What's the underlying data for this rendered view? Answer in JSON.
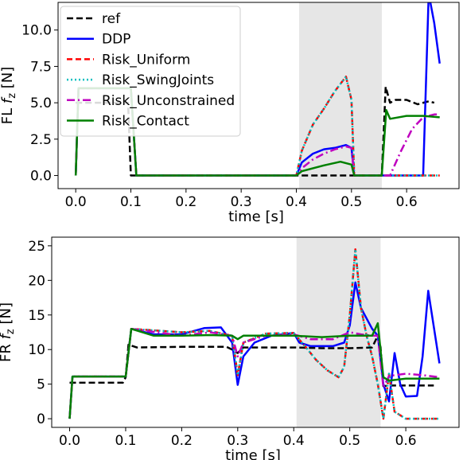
{
  "chart_data": [
    {
      "type": "line",
      "xlabel": "time [s]",
      "ylabel_main": "FL ",
      "ylabel_var": "f",
      "ylabel_sub": "z",
      "ylabel_unit": " [N]",
      "xlim": [
        -0.032,
        0.695
      ],
      "ylim": [
        -0.9,
        11.9
      ],
      "xticks": [
        0.0,
        0.1,
        0.2,
        0.3,
        0.4,
        0.5,
        0.6
      ],
      "xtick_labels": [
        "0.0",
        "0.1",
        "0.2",
        "0.3",
        "0.4",
        "0.5",
        "0.6"
      ],
      "yticks": [
        0.0,
        2.5,
        5.0,
        7.5,
        10.0
      ],
      "ytick_labels": [
        "0.0",
        "2.5",
        "5.0",
        "7.5",
        "10.0"
      ],
      "shaded_region": [
        0.405,
        0.555
      ],
      "legend": "top-left",
      "series": [
        {
          "name": "ref",
          "color": "#000000",
          "dash": "8,4",
          "x": [
            0.0,
            0.001,
            0.095,
            0.1,
            0.405,
            0.555,
            0.562,
            0.57,
            0.58,
            0.6,
            0.62,
            0.64,
            0.65
          ],
          "y": [
            5.0,
            5.0,
            5.0,
            0.0,
            0.0,
            0.0,
            6.1,
            5.0,
            5.2,
            5.2,
            4.9,
            5.1,
            5.0
          ]
        },
        {
          "name": "DDP",
          "color": "#0000ff",
          "dash": "",
          "x": [
            0.0,
            0.005,
            0.1,
            0.11,
            0.4,
            0.41,
            0.43,
            0.45,
            0.47,
            0.49,
            0.5,
            0.505,
            0.555,
            0.63,
            0.64,
            0.65,
            0.66
          ],
          "y": [
            0.0,
            6.0,
            6.0,
            0.0,
            0.0,
            0.9,
            1.5,
            1.8,
            1.9,
            2.1,
            1.9,
            0.0,
            0.0,
            0.0,
            12.5,
            10.5,
            7.7
          ]
        },
        {
          "name": "Risk_Uniform",
          "color": "#ff0000",
          "dash": "7,4",
          "x": [
            0.0,
            0.005,
            0.1,
            0.11,
            0.4,
            0.41,
            0.43,
            0.45,
            0.47,
            0.49,
            0.5,
            0.505,
            0.66
          ],
          "y": [
            0.0,
            6.0,
            6.0,
            0.0,
            0.0,
            1.7,
            3.5,
            4.6,
            5.8,
            6.8,
            5.2,
            0.0,
            0.0
          ]
        },
        {
          "name": "Risk_SwingJoints",
          "color": "#00bfbf",
          "dash": "2,3",
          "x": [
            0.0,
            0.005,
            0.1,
            0.11,
            0.4,
            0.41,
            0.43,
            0.45,
            0.47,
            0.49,
            0.5,
            0.505,
            0.66
          ],
          "y": [
            0.0,
            6.0,
            6.0,
            0.0,
            0.0,
            1.7,
            3.5,
            4.6,
            5.8,
            6.8,
            5.2,
            0.0,
            0.0
          ]
        },
        {
          "name": "Risk_Unconstrained",
          "color": "#bf00bf",
          "dash": "10,4,2,4",
          "x": [
            0.0,
            0.005,
            0.1,
            0.11,
            0.4,
            0.41,
            0.43,
            0.45,
            0.47,
            0.49,
            0.5,
            0.505,
            0.57,
            0.59,
            0.61,
            0.63,
            0.65,
            0.66
          ],
          "y": [
            0.0,
            6.0,
            6.0,
            0.0,
            0.0,
            0.5,
            1.1,
            1.5,
            1.8,
            2.0,
            1.9,
            0.0,
            0.0,
            1.7,
            3.2,
            4.0,
            4.2,
            4.2
          ]
        },
        {
          "name": "Risk_Contact",
          "color": "#008000",
          "dash": "",
          "x": [
            0.0,
            0.005,
            0.1,
            0.11,
            0.4,
            0.41,
            0.45,
            0.48,
            0.5,
            0.505,
            0.555,
            0.563,
            0.57,
            0.6,
            0.63,
            0.66
          ],
          "y": [
            0.0,
            6.0,
            6.0,
            0.0,
            0.0,
            0.3,
            0.7,
            0.95,
            0.75,
            0.0,
            0.0,
            4.5,
            3.9,
            4.1,
            4.1,
            4.0
          ]
        }
      ]
    },
    {
      "type": "line",
      "xlabel": "time [s]",
      "ylabel_main": "FR ",
      "ylabel_var": "f",
      "ylabel_sub": "z",
      "ylabel_unit": " [N]",
      "xlim": [
        -0.032,
        0.695
      ],
      "ylim": [
        -1.25,
        26.25
      ],
      "xticks": [
        0.0,
        0.1,
        0.2,
        0.3,
        0.4,
        0.5,
        0.6
      ],
      "xtick_labels": [
        "0.0",
        "0.1",
        "0.2",
        "0.3",
        "0.4",
        "0.5",
        "0.6"
      ],
      "yticks": [
        0,
        5,
        10,
        15,
        20,
        25
      ],
      "ytick_labels": [
        "0",
        "5",
        "10",
        "15",
        "20",
        "25"
      ],
      "shaded_region": [
        0.405,
        0.555
      ],
      "series": [
        {
          "name": "ref",
          "color": "#000000",
          "dash": "8,4",
          "x": [
            0.0,
            0.095,
            0.1,
            0.105,
            0.12,
            0.2,
            0.28,
            0.29,
            0.3,
            0.31,
            0.4,
            0.45,
            0.5,
            0.54,
            0.55,
            0.555,
            0.56,
            0.57,
            0.65
          ],
          "y": [
            5.2,
            5.2,
            6.0,
            10.7,
            10.3,
            10.4,
            10.4,
            10.0,
            9.5,
            10.3,
            10.3,
            10.2,
            10.2,
            10.3,
            12.0,
            10.3,
            4.7,
            4.8,
            4.8
          ]
        },
        {
          "name": "DDP",
          "color": "#0000ff",
          "dash": "",
          "x": [
            0.0,
            0.005,
            0.1,
            0.11,
            0.15,
            0.2,
            0.24,
            0.27,
            0.29,
            0.3,
            0.31,
            0.33,
            0.36,
            0.4,
            0.41,
            0.43,
            0.47,
            0.49,
            0.5,
            0.51,
            0.52,
            0.54,
            0.55,
            0.56,
            0.57,
            0.58,
            0.59,
            0.6,
            0.62,
            0.63,
            0.64,
            0.66
          ],
          "y": [
            0.0,
            6.1,
            6.1,
            13.0,
            12.2,
            12.2,
            13.1,
            13.2,
            11.0,
            4.9,
            9.0,
            11.0,
            12.0,
            12.4,
            11.0,
            10.5,
            10.5,
            11.0,
            13.5,
            19.7,
            16.0,
            13.0,
            12.0,
            5.0,
            2.5,
            9.5,
            5.0,
            3.2,
            3.3,
            9.0,
            18.5,
            8.0
          ]
        },
        {
          "name": "Risk_Uniform",
          "color": "#ff0000",
          "dash": "7,4",
          "x": [
            0.0,
            0.005,
            0.1,
            0.11,
            0.2,
            0.25,
            0.29,
            0.3,
            0.31,
            0.35,
            0.4,
            0.42,
            0.44,
            0.46,
            0.48,
            0.49,
            0.5,
            0.51,
            0.52,
            0.53,
            0.54,
            0.55,
            0.56,
            0.57,
            0.58,
            0.6,
            0.62,
            0.66
          ],
          "y": [
            0.0,
            6.1,
            6.1,
            13.0,
            12.5,
            12.7,
            12.0,
            6.3,
            11.0,
            12.3,
            12.4,
            10.5,
            8.5,
            7.0,
            6.0,
            7.5,
            15.0,
            24.5,
            16.0,
            12.0,
            9.0,
            5.0,
            0.0,
            6.5,
            1.0,
            0.0,
            0.0,
            0.0
          ]
        },
        {
          "name": "Risk_SwingJoints",
          "color": "#00bfbf",
          "dash": "2,3",
          "x": [
            0.0,
            0.005,
            0.1,
            0.11,
            0.2,
            0.25,
            0.29,
            0.3,
            0.31,
            0.35,
            0.4,
            0.42,
            0.44,
            0.46,
            0.48,
            0.49,
            0.5,
            0.51,
            0.52,
            0.53,
            0.54,
            0.55,
            0.56,
            0.57,
            0.58,
            0.6,
            0.62,
            0.66
          ],
          "y": [
            0.0,
            6.1,
            6.1,
            13.0,
            12.5,
            12.7,
            12.0,
            6.3,
            11.0,
            12.3,
            12.4,
            10.5,
            8.5,
            7.0,
            6.0,
            7.5,
            15.0,
            24.5,
            16.0,
            12.0,
            9.0,
            5.0,
            0.0,
            6.5,
            1.0,
            0.0,
            0.0,
            0.0
          ]
        },
        {
          "name": "Risk_Unconstrained",
          "color": "#bf00bf",
          "dash": "10,4,2,4",
          "x": [
            0.0,
            0.005,
            0.1,
            0.11,
            0.2,
            0.25,
            0.29,
            0.3,
            0.31,
            0.35,
            0.4,
            0.43,
            0.47,
            0.5,
            0.52,
            0.54,
            0.55,
            0.56,
            0.57,
            0.6,
            0.63,
            0.66
          ],
          "y": [
            0.0,
            6.1,
            6.1,
            13.0,
            12.0,
            12.5,
            12.0,
            9.0,
            11.0,
            12.0,
            12.2,
            11.5,
            11.5,
            12.5,
            12.2,
            12.0,
            12.0,
            4.5,
            6.2,
            6.5,
            6.3,
            6.0
          ]
        },
        {
          "name": "Risk_Contact",
          "color": "#008000",
          "dash": "",
          "x": [
            0.0,
            0.005,
            0.1,
            0.11,
            0.15,
            0.2,
            0.25,
            0.29,
            0.3,
            0.31,
            0.35,
            0.4,
            0.45,
            0.5,
            0.53,
            0.54,
            0.55,
            0.56,
            0.57,
            0.6,
            0.66
          ],
          "y": [
            0.0,
            6.1,
            6.1,
            13.0,
            12.0,
            12.0,
            12.1,
            12.0,
            11.5,
            12.0,
            12.0,
            12.0,
            11.8,
            12.0,
            12.0,
            12.0,
            13.8,
            6.0,
            5.5,
            5.8,
            5.8
          ]
        }
      ]
    }
  ]
}
